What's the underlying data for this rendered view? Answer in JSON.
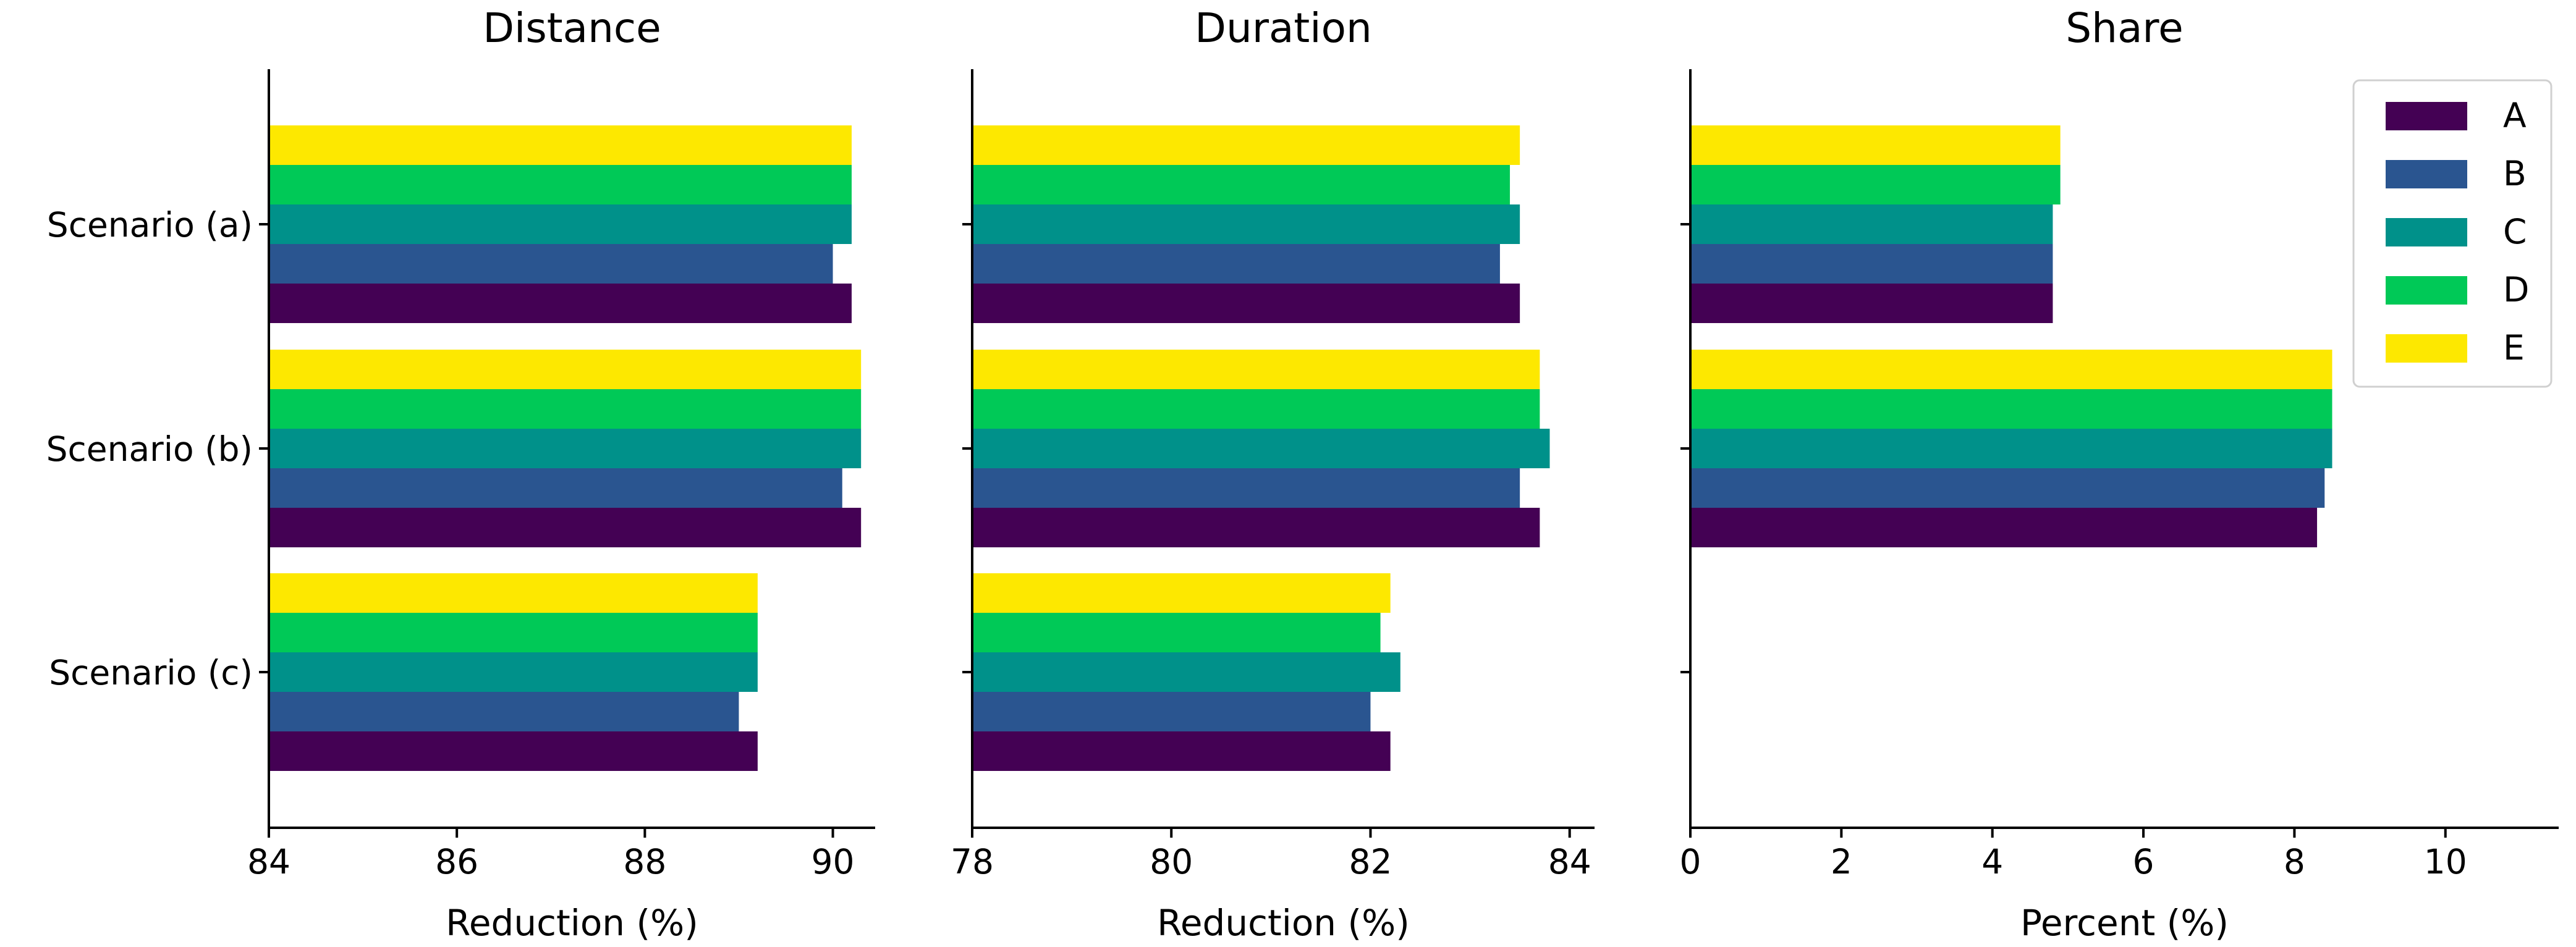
{
  "chart_data": [
    {
      "type": "bar",
      "orientation": "horizontal",
      "title": "Distance",
      "xlabel": "Reduction (%)",
      "xlim": [
        84,
        90.45
      ],
      "xticks": [
        84,
        86,
        88,
        90
      ],
      "categories": [
        "Scenario (a)",
        "Scenario (b)",
        "Scenario (c)"
      ],
      "series": [
        {
          "name": "A",
          "values": [
            90.2,
            90.3,
            89.2
          ]
        },
        {
          "name": "B",
          "values": [
            90.0,
            90.1,
            89.0
          ]
        },
        {
          "name": "C",
          "values": [
            90.2,
            90.3,
            89.2
          ]
        },
        {
          "name": "D",
          "values": [
            90.2,
            90.3,
            89.2
          ]
        },
        {
          "name": "E",
          "values": [
            90.2,
            90.3,
            89.2
          ]
        }
      ]
    },
    {
      "type": "bar",
      "orientation": "horizontal",
      "title": "Duration",
      "xlabel": "Reduction (%)",
      "xlim": [
        78,
        84.25
      ],
      "xticks": [
        78,
        80,
        82,
        84
      ],
      "categories": [
        "Scenario (a)",
        "Scenario (b)",
        "Scenario (c)"
      ],
      "series": [
        {
          "name": "A",
          "values": [
            83.5,
            83.7,
            82.2
          ]
        },
        {
          "name": "B",
          "values": [
            83.3,
            83.5,
            82.0
          ]
        },
        {
          "name": "C",
          "values": [
            83.5,
            83.8,
            82.3
          ]
        },
        {
          "name": "D",
          "values": [
            83.4,
            83.7,
            82.1
          ]
        },
        {
          "name": "E",
          "values": [
            83.5,
            83.7,
            82.2
          ]
        }
      ]
    },
    {
      "type": "bar",
      "orientation": "horizontal",
      "title": "Share",
      "xlabel": "Percent (%)",
      "xlim": [
        0,
        11.5
      ],
      "xticks": [
        0,
        2,
        4,
        6,
        8,
        10
      ],
      "categories": [
        "Scenario (a)",
        "Scenario (b)",
        "Scenario (c)"
      ],
      "series": [
        {
          "name": "A",
          "values": [
            4.8,
            8.3,
            0
          ]
        },
        {
          "name": "B",
          "values": [
            4.8,
            8.4,
            0
          ]
        },
        {
          "name": "C",
          "values": [
            4.8,
            8.5,
            0
          ]
        },
        {
          "name": "D",
          "values": [
            4.9,
            8.5,
            0
          ]
        },
        {
          "name": "E",
          "values": [
            4.9,
            8.5,
            0
          ]
        }
      ],
      "legend": {
        "position": "top-right"
      }
    }
  ],
  "colors": {
    "A": "#440154",
    "B": "#2a5590",
    "C": "#00918a",
    "D": "#00c957",
    "E": "#fde800"
  }
}
